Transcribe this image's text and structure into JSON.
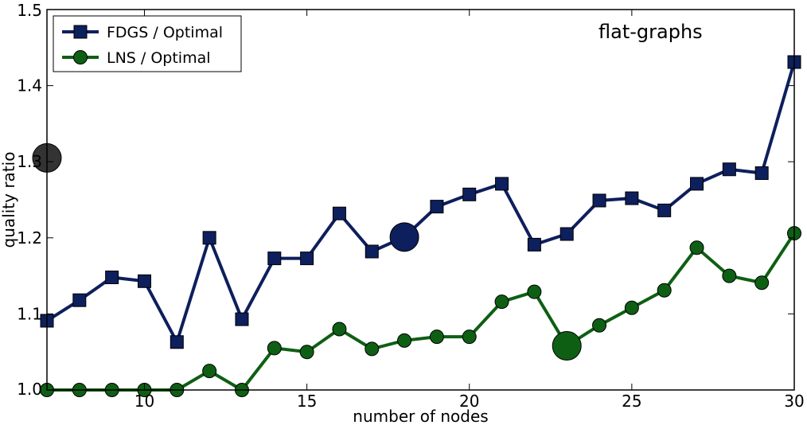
{
  "chart_data": {
    "type": "line",
    "title": "",
    "annotation": "flat-graphs",
    "xlabel": "number of nodes",
    "ylabel": "quality ratio",
    "xlim": [
      7,
      30
    ],
    "ylim": [
      1.0,
      1.5
    ],
    "xticks": [
      10,
      15,
      20,
      25,
      30
    ],
    "yticks": [
      1.0,
      1.1,
      1.2,
      1.3,
      1.4,
      1.5
    ],
    "ytick_labels": [
      "1.0",
      "1.1",
      "1.2",
      "1.3",
      "1.4",
      "1.5"
    ],
    "grid": false,
    "legend_position": "top-left",
    "x": [
      7,
      8,
      9,
      10,
      11,
      12,
      13,
      14,
      15,
      16,
      17,
      18,
      19,
      20,
      21,
      22,
      23,
      24,
      25,
      26,
      27,
      28,
      29,
      30
    ],
    "series": [
      {
        "name": "FDGS / Optimal",
        "marker": "square",
        "color": "#0d1f5c",
        "values": [
          1.091,
          1.118,
          1.148,
          1.143,
          1.063,
          1.2,
          1.093,
          1.173,
          1.173,
          1.232,
          1.182,
          1.201,
          1.241,
          1.257,
          1.271,
          1.191,
          1.205,
          1.249,
          1.252,
          1.236,
          1.271,
          1.29,
          1.285,
          1.431
        ]
      },
      {
        "name": "LNS / Optimal",
        "marker": "circle",
        "color": "#0e5f14",
        "values": [
          1.0,
          1.0,
          1.0,
          1.0,
          1.0,
          1.025,
          1.0,
          1.055,
          1.05,
          1.08,
          1.054,
          1.065,
          1.07,
          1.07,
          1.116,
          1.129,
          1.058,
          1.085,
          1.108,
          1.131,
          1.187,
          1.15,
          1.141,
          1.206
        ]
      }
    ],
    "highlights": [
      {
        "x": 7,
        "y": 1.305,
        "color": "#333333"
      },
      {
        "x": 18,
        "y": 1.201,
        "color": "#0d1f5c"
      },
      {
        "x": 23,
        "y": 1.058,
        "color": "#0e5f14"
      }
    ]
  }
}
